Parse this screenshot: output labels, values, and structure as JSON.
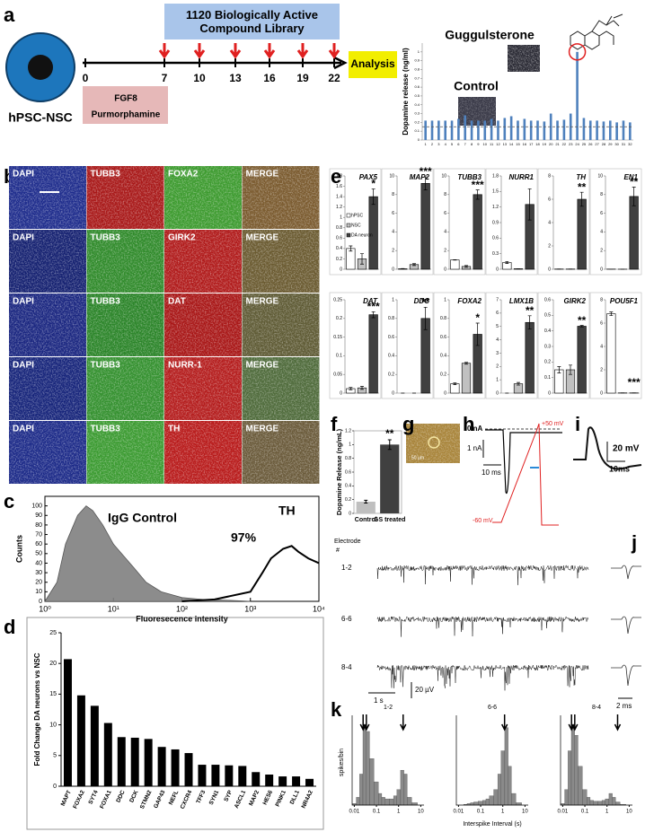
{
  "panel_labels": [
    "a",
    "b",
    "c",
    "d",
    "e",
    "f",
    "g",
    "h",
    "i",
    "j",
    "k"
  ],
  "a": {
    "cell_label": "hPSC-NSC",
    "library": "1120 Biologically Active Compound Library",
    "days": [
      0,
      7,
      10,
      13,
      16,
      19,
      22
    ],
    "treatment": [
      "FGF8",
      "Purmorphamine"
    ],
    "analysis": "Analysis",
    "hit": "Guggulsterone",
    "control": "Control",
    "chart": {
      "type": "bar",
      "ylabel": "Dopamine release (ng/ml)",
      "color": "#4f81bd",
      "categories": [
        "1",
        "2",
        "3",
        "4",
        "5",
        "6",
        "7",
        "8",
        "9",
        "10",
        "11",
        "12",
        "13",
        "14",
        "15",
        "16",
        "17",
        "18",
        "19",
        "20",
        "21",
        "22",
        "23",
        "24",
        "25",
        "26",
        "27",
        "28",
        "29",
        "30",
        "31",
        "32"
      ],
      "values": [
        0.22,
        0.22,
        0.22,
        0.22,
        0.22,
        0.24,
        0.28,
        0.22,
        0.22,
        0.22,
        0.24,
        0.22,
        0.25,
        0.27,
        0.22,
        0.24,
        0.22,
        0.22,
        0.21,
        0.3,
        0.22,
        0.23,
        0.3,
        1.0,
        0.25,
        0.22,
        0.22,
        0.21,
        0.22,
        0.2,
        0.22,
        0.2
      ],
      "threshold": 0.15,
      "ylim": [
        0,
        1.1
      ],
      "yticks": [
        0,
        0.1,
        0.2,
        0.3,
        0.4,
        0.5,
        0.6,
        0.7,
        0.8,
        0.9,
        1
      ]
    }
  },
  "b": {
    "scale_bar": true,
    "rows": [
      {
        "labels": [
          "DAPI",
          "TUBB3",
          "FOXA2",
          "MERGE"
        ],
        "colors": [
          "#1e2c8c",
          "#a81818",
          "#3c9a2e",
          "#7a5a2e"
        ]
      },
      {
        "labels": [
          "DAPI",
          "TUBB3",
          "GIRK2",
          "MERGE"
        ],
        "colors": [
          "#142070",
          "#2f8a2a",
          "#b01a1a",
          "#6a5a30"
        ]
      },
      {
        "labels": [
          "DAPI",
          "TUBB3",
          "DAT",
          "MERGE"
        ],
        "colors": [
          "#1a2680",
          "#2a8428",
          "#a81616",
          "#5e5a34"
        ]
      },
      {
        "labels": [
          "DAPI",
          "TUBB3",
          "NURR-1",
          "MERGE"
        ],
        "colors": [
          "#16247a",
          "#33902e",
          "#b41c1c",
          "#4e6a3a"
        ]
      },
      {
        "labels": [
          "DAPI",
          "TUBB3",
          "TH",
          "MERGE"
        ],
        "colors": [
          "#1c2a88",
          "#3a9a30",
          "#b81a1a",
          "#6a5a3a"
        ]
      }
    ]
  },
  "c": {
    "chart": {
      "type": "line",
      "ylabel": "Counts",
      "xlabel": "Fluoresecence intensity",
      "log_x": true,
      "xlim": [
        1,
        10000
      ],
      "xticks": [
        {
          "value": 1,
          "label": "10⁰"
        },
        {
          "value": 10,
          "label": "10¹"
        },
        {
          "value": 100,
          "label": "10²"
        },
        {
          "value": 1000,
          "label": "10³"
        },
        {
          "value": 10000,
          "label": "10⁴"
        }
      ],
      "ylim": [
        0,
        110
      ],
      "yticks": [
        0,
        10,
        20,
        30,
        40,
        50,
        60,
        70,
        80,
        90,
        100
      ],
      "series": [
        {
          "name": "IgG Control",
          "color": "#808080",
          "filled": true,
          "x": [
            1,
            1.5,
            2,
            3,
            4,
            5,
            7,
            10,
            20,
            30,
            50,
            100,
            200,
            500,
            1000
          ],
          "values": [
            0,
            20,
            60,
            90,
            100,
            95,
            80,
            60,
            35,
            20,
            10,
            4,
            2,
            1,
            0
          ]
        },
        {
          "name": "TH",
          "color": "#000000",
          "filled": false,
          "x": [
            100,
            300,
            1000,
            1500,
            2000,
            3000,
            4000,
            5000,
            7000,
            10000
          ],
          "values": [
            0,
            2,
            10,
            30,
            45,
            55,
            58,
            52,
            45,
            40
          ]
        }
      ],
      "annotation": "97%"
    }
  },
  "d": {
    "chart": {
      "type": "bar",
      "ylabel": "Fold Change DA neurons vs NSC",
      "color": "#000000",
      "categories": [
        "MAPT",
        "FOXA2",
        "SYT4",
        "FOXA1",
        "DDC",
        "DCK",
        "STMN2",
        "GAP43",
        "NEFL",
        "CXCR4",
        "TFF3",
        "SYN1",
        "SYP",
        "ASCL1",
        "MAP2",
        "HES6",
        "PINK1",
        "DLL1",
        "NR4A2"
      ],
      "values": [
        20.7,
        14.8,
        13.1,
        10.3,
        8.0,
        7.9,
        7.7,
        6.4,
        6.0,
        5.4,
        3.5,
        3.5,
        3.4,
        3.3,
        2.3,
        1.9,
        1.6,
        1.6,
        1.2
      ],
      "ylim": [
        0,
        25
      ],
      "yticks": [
        0,
        5,
        10,
        15,
        20,
        25
      ]
    }
  },
  "e": {
    "legend": [
      "hPSC",
      "NSC",
      "DA neuron"
    ],
    "colors": [
      "#ffffff",
      "#c0c0c0",
      "#404040"
    ],
    "genes": [
      {
        "name": "PAX5",
        "ylim": [
          0,
          1.8
        ],
        "yticks": [
          0,
          0.2,
          0.4,
          0.6,
          0.8,
          1,
          1.2,
          1.4,
          1.6,
          1.8
        ],
        "values": [
          0.4,
          0.2,
          1.4
        ],
        "errors": [
          0.05,
          0.1,
          0.15
        ],
        "stars": "*"
      },
      {
        "name": "MAP2",
        "ylim": [
          0,
          10
        ],
        "yticks": [
          0,
          2,
          4,
          6,
          8,
          10
        ],
        "values": [
          0.05,
          0.5,
          9.2
        ],
        "errors": [
          0.02,
          0.1,
          0.7
        ],
        "stars": "***"
      },
      {
        "name": "TUBB3",
        "ylim": [
          0,
          10
        ],
        "yticks": [
          0,
          2,
          4,
          6,
          8,
          10
        ],
        "values": [
          1,
          0.3,
          8.0
        ],
        "errors": [
          0.02,
          0.1,
          0.5
        ],
        "stars": "***"
      },
      {
        "name": "NURR1",
        "ylim": [
          0,
          1.8
        ],
        "yticks": [
          0,
          0.3,
          0.6,
          0.9,
          1.2,
          1.5,
          1.8
        ],
        "values": [
          0.13,
          0.01,
          1.25
        ],
        "errors": [
          0.02,
          0,
          0.3
        ]
      },
      {
        "name": "TH",
        "ylim": [
          0,
          8
        ],
        "yticks": [
          0,
          2,
          4,
          6,
          8
        ],
        "values": [
          0.02,
          0.02,
          6.0
        ],
        "errors": [
          0,
          0,
          0.6
        ],
        "stars": "**"
      },
      {
        "name": "EN1",
        "ylim": [
          0,
          10
        ],
        "yticks": [
          0,
          2,
          4,
          6,
          8,
          10
        ],
        "values": [
          0.02,
          0.01,
          7.8
        ],
        "errors": [
          0,
          0,
          1.0
        ],
        "stars": "**"
      },
      {
        "name": "DAT",
        "ylim": [
          0,
          0.25
        ],
        "yticks": [
          0,
          0.05,
          0.1,
          0.15,
          0.2,
          0.25
        ],
        "values": [
          0.012,
          0.014,
          0.21
        ],
        "errors": [
          0.003,
          0.004,
          0.008
        ],
        "stars": "***"
      },
      {
        "name": "DDC",
        "ylim": [
          0,
          1
        ],
        "yticks": [
          0,
          0.2,
          0.4,
          0.6,
          0.8,
          1
        ],
        "values": [
          0,
          0,
          0.8
        ],
        "errors": [
          0,
          0,
          0.12
        ],
        "stars": "**"
      },
      {
        "name": "FOXA2",
        "ylim": [
          0,
          1
        ],
        "yticks": [
          0,
          0.2,
          0.4,
          0.6,
          0.8,
          1
        ],
        "values": [
          0.1,
          0.32,
          0.63
        ],
        "errors": [
          0.01,
          0.01,
          0.12
        ],
        "stars": "*"
      },
      {
        "name": "LMX1B",
        "ylim": [
          0,
          7
        ],
        "yticks": [
          0,
          1,
          2,
          3,
          4,
          5,
          6,
          7
        ],
        "values": [
          0,
          0.7,
          5.3
        ],
        "errors": [
          0,
          0.1,
          0.5
        ],
        "stars": "**"
      },
      {
        "name": "GIRK2",
        "ylim": [
          0,
          0.6
        ],
        "yticks": [
          0,
          0.1,
          0.2,
          0.3,
          0.4,
          0.5,
          0.6
        ],
        "values": [
          0.15,
          0.15,
          0.43
        ],
        "errors": [
          0.02,
          0.03,
          0.005
        ],
        "stars": "**"
      },
      {
        "name": "POU5F1",
        "ylim": [
          0,
          8
        ],
        "yticks": [
          0,
          2,
          4,
          6,
          8
        ],
        "values": [
          6.8,
          0.02,
          0.02
        ],
        "errors": [
          0.15,
          0,
          0
        ],
        "stars": "***"
      }
    ]
  },
  "f": {
    "chart": {
      "type": "bar",
      "ylabel": "Dopamine Release (ng/mL)",
      "categories": [
        "Control",
        "GS treated"
      ],
      "values": [
        0.17,
        1.0
      ],
      "errors": [
        0.02,
        0.07
      ],
      "colors": [
        "#bfbfbf",
        "#404040"
      ],
      "stars": "**",
      "ylim": [
        0,
        1.2
      ],
      "yticks": [
        0,
        0.2,
        0.4,
        0.6,
        0.8,
        1,
        1.2
      ]
    }
  },
  "g": {
    "scale": "50 µm"
  },
  "h": {
    "labels": [
      "0 nA",
      "1 nA",
      "10 ms",
      "+50 mV",
      "-60 mV"
    ]
  },
  "i": {
    "labels": [
      "20 mV",
      "10ms"
    ]
  },
  "j": {
    "heading": [
      "Electrode",
      "#"
    ],
    "electrodes": [
      "1-2",
      "6-6",
      "8-4"
    ],
    "scales": [
      "1 s",
      "20 µV",
      "2 ms"
    ]
  },
  "k": {
    "ylabel": "spikes/bin",
    "xlabel": "Interspike Interval (s)",
    "xlim": [
      0.008,
      14
    ],
    "xticks": [
      0.01,
      0.1,
      1,
      10
    ],
    "ylim": [
      0,
      110
    ],
    "x": [
      0.01,
      0.015,
      0.02,
      0.03,
      0.04,
      0.06,
      0.1,
      0.15,
      0.2,
      0.3,
      0.5,
      0.7,
      1,
      1.5,
      2,
      3,
      5,
      10
    ],
    "histograms": [
      {
        "title": "1-2",
        "values": [
          2,
          10,
          40,
          100,
          95,
          60,
          30,
          15,
          10,
          8,
          8,
          12,
          20,
          45,
          40,
          10,
          3,
          0
        ],
        "arrows": [
          0.025,
          0.035,
          1.6
        ]
      },
      {
        "title": "6-6",
        "values": [
          0,
          0,
          1,
          2,
          3,
          4,
          5,
          6,
          8,
          12,
          20,
          40,
          70,
          100,
          50,
          15,
          3,
          0
        ],
        "arrows": [
          1.2
        ]
      },
      {
        "title": "8-4",
        "values": [
          2,
          20,
          70,
          100,
          90,
          50,
          20,
          10,
          6,
          5,
          5,
          6,
          8,
          15,
          10,
          4,
          1,
          0
        ],
        "arrows": [
          0.025,
          0.035,
          3
        ]
      }
    ]
  }
}
